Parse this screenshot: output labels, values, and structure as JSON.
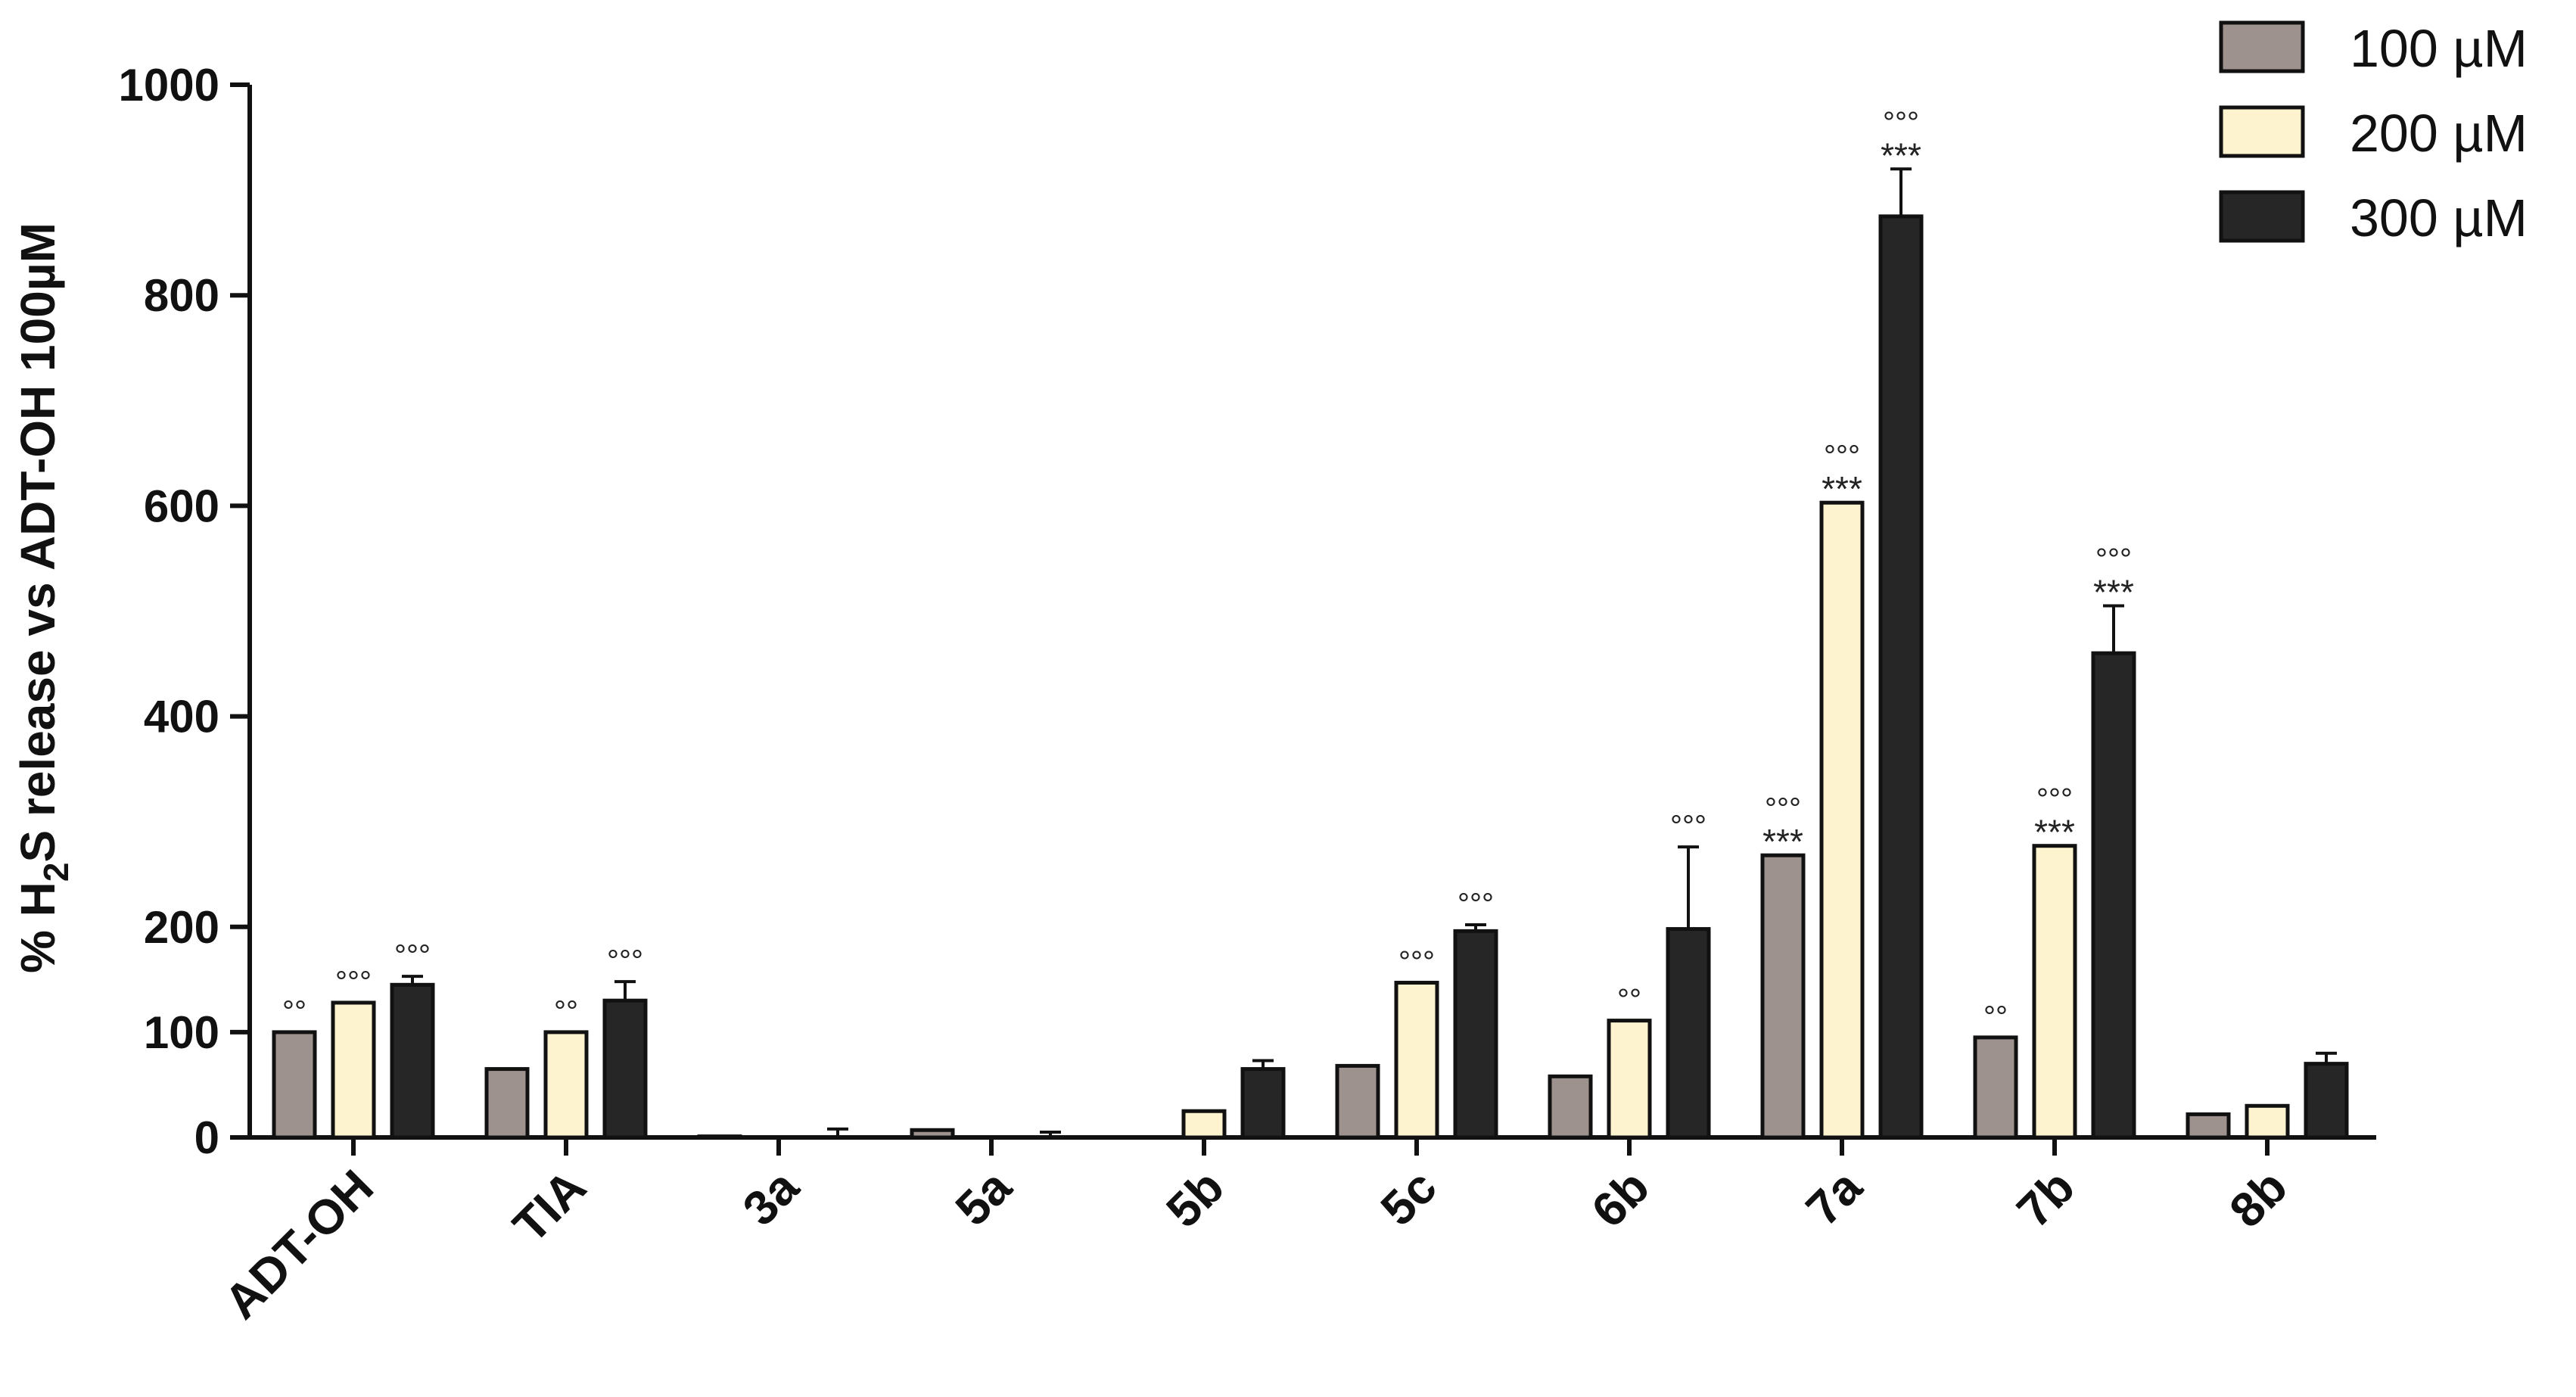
{
  "chart_data": {
    "type": "bar",
    "ylabel_parts": [
      "% H",
      "2",
      "S release vs ADT-OH 100µM"
    ],
    "yticks": [
      0,
      100,
      200,
      400,
      600,
      800,
      1000
    ],
    "ylim": [
      0,
      1000
    ],
    "categories": [
      "ADT-OH",
      "TIA",
      "3a",
      "5a",
      "5b",
      "5c",
      "6b",
      "7a",
      "7b",
      "8b"
    ],
    "series": [
      {
        "name": "100 µM",
        "color": "#9e928e",
        "values": [
          100,
          65,
          1,
          7,
          0,
          68,
          58,
          268,
          95,
          22
        ],
        "errors": [
          0,
          0,
          0,
          0,
          0,
          0,
          0,
          0,
          0,
          0
        ],
        "marks": [
          [
            "°°",
            ""
          ],
          [
            "",
            ""
          ],
          [
            "",
            ""
          ],
          [
            "",
            ""
          ],
          [
            "",
            ""
          ],
          [
            "",
            ""
          ],
          [
            "",
            ""
          ],
          [
            "°°°",
            "***"
          ],
          [
            "°°",
            ""
          ],
          [
            "",
            ""
          ]
        ]
      },
      {
        "name": "200 µM",
        "color": "#fdf3cf",
        "values": [
          128,
          100,
          0,
          0,
          25,
          147,
          111,
          603,
          277,
          30
        ],
        "errors": [
          0,
          0,
          0,
          0,
          0,
          0,
          0,
          0,
          0,
          0
        ],
        "marks": [
          [
            "°°°",
            ""
          ],
          [
            "°°",
            ""
          ],
          [
            "",
            ""
          ],
          [
            "",
            ""
          ],
          [
            "",
            ""
          ],
          [
            "°°°",
            ""
          ],
          [
            "°°",
            ""
          ],
          [
            "°°°",
            "***"
          ],
          [
            "°°°",
            "***"
          ],
          [
            "",
            ""
          ]
        ]
      },
      {
        "name": "300 µM",
        "color": "#262626",
        "values": [
          145,
          130,
          0,
          0,
          65,
          196,
          198,
          875,
          460,
          70
        ],
        "errors": [
          8,
          18,
          8,
          5,
          8,
          6,
          78,
          45,
          45,
          10
        ],
        "marks": [
          [
            "°°°",
            ""
          ],
          [
            "°°°",
            ""
          ],
          [
            "",
            ""
          ],
          [
            "",
            ""
          ],
          [
            "",
            ""
          ],
          [
            "°°°",
            ""
          ],
          [
            "°°°",
            ""
          ],
          [
            "°°°",
            "***"
          ],
          [
            "°°°",
            "***"
          ],
          [
            "",
            ""
          ]
        ]
      }
    ],
    "legend": [
      "100 µM",
      "200 µM",
      "300 µM"
    ],
    "legend_position": "top-right"
  }
}
